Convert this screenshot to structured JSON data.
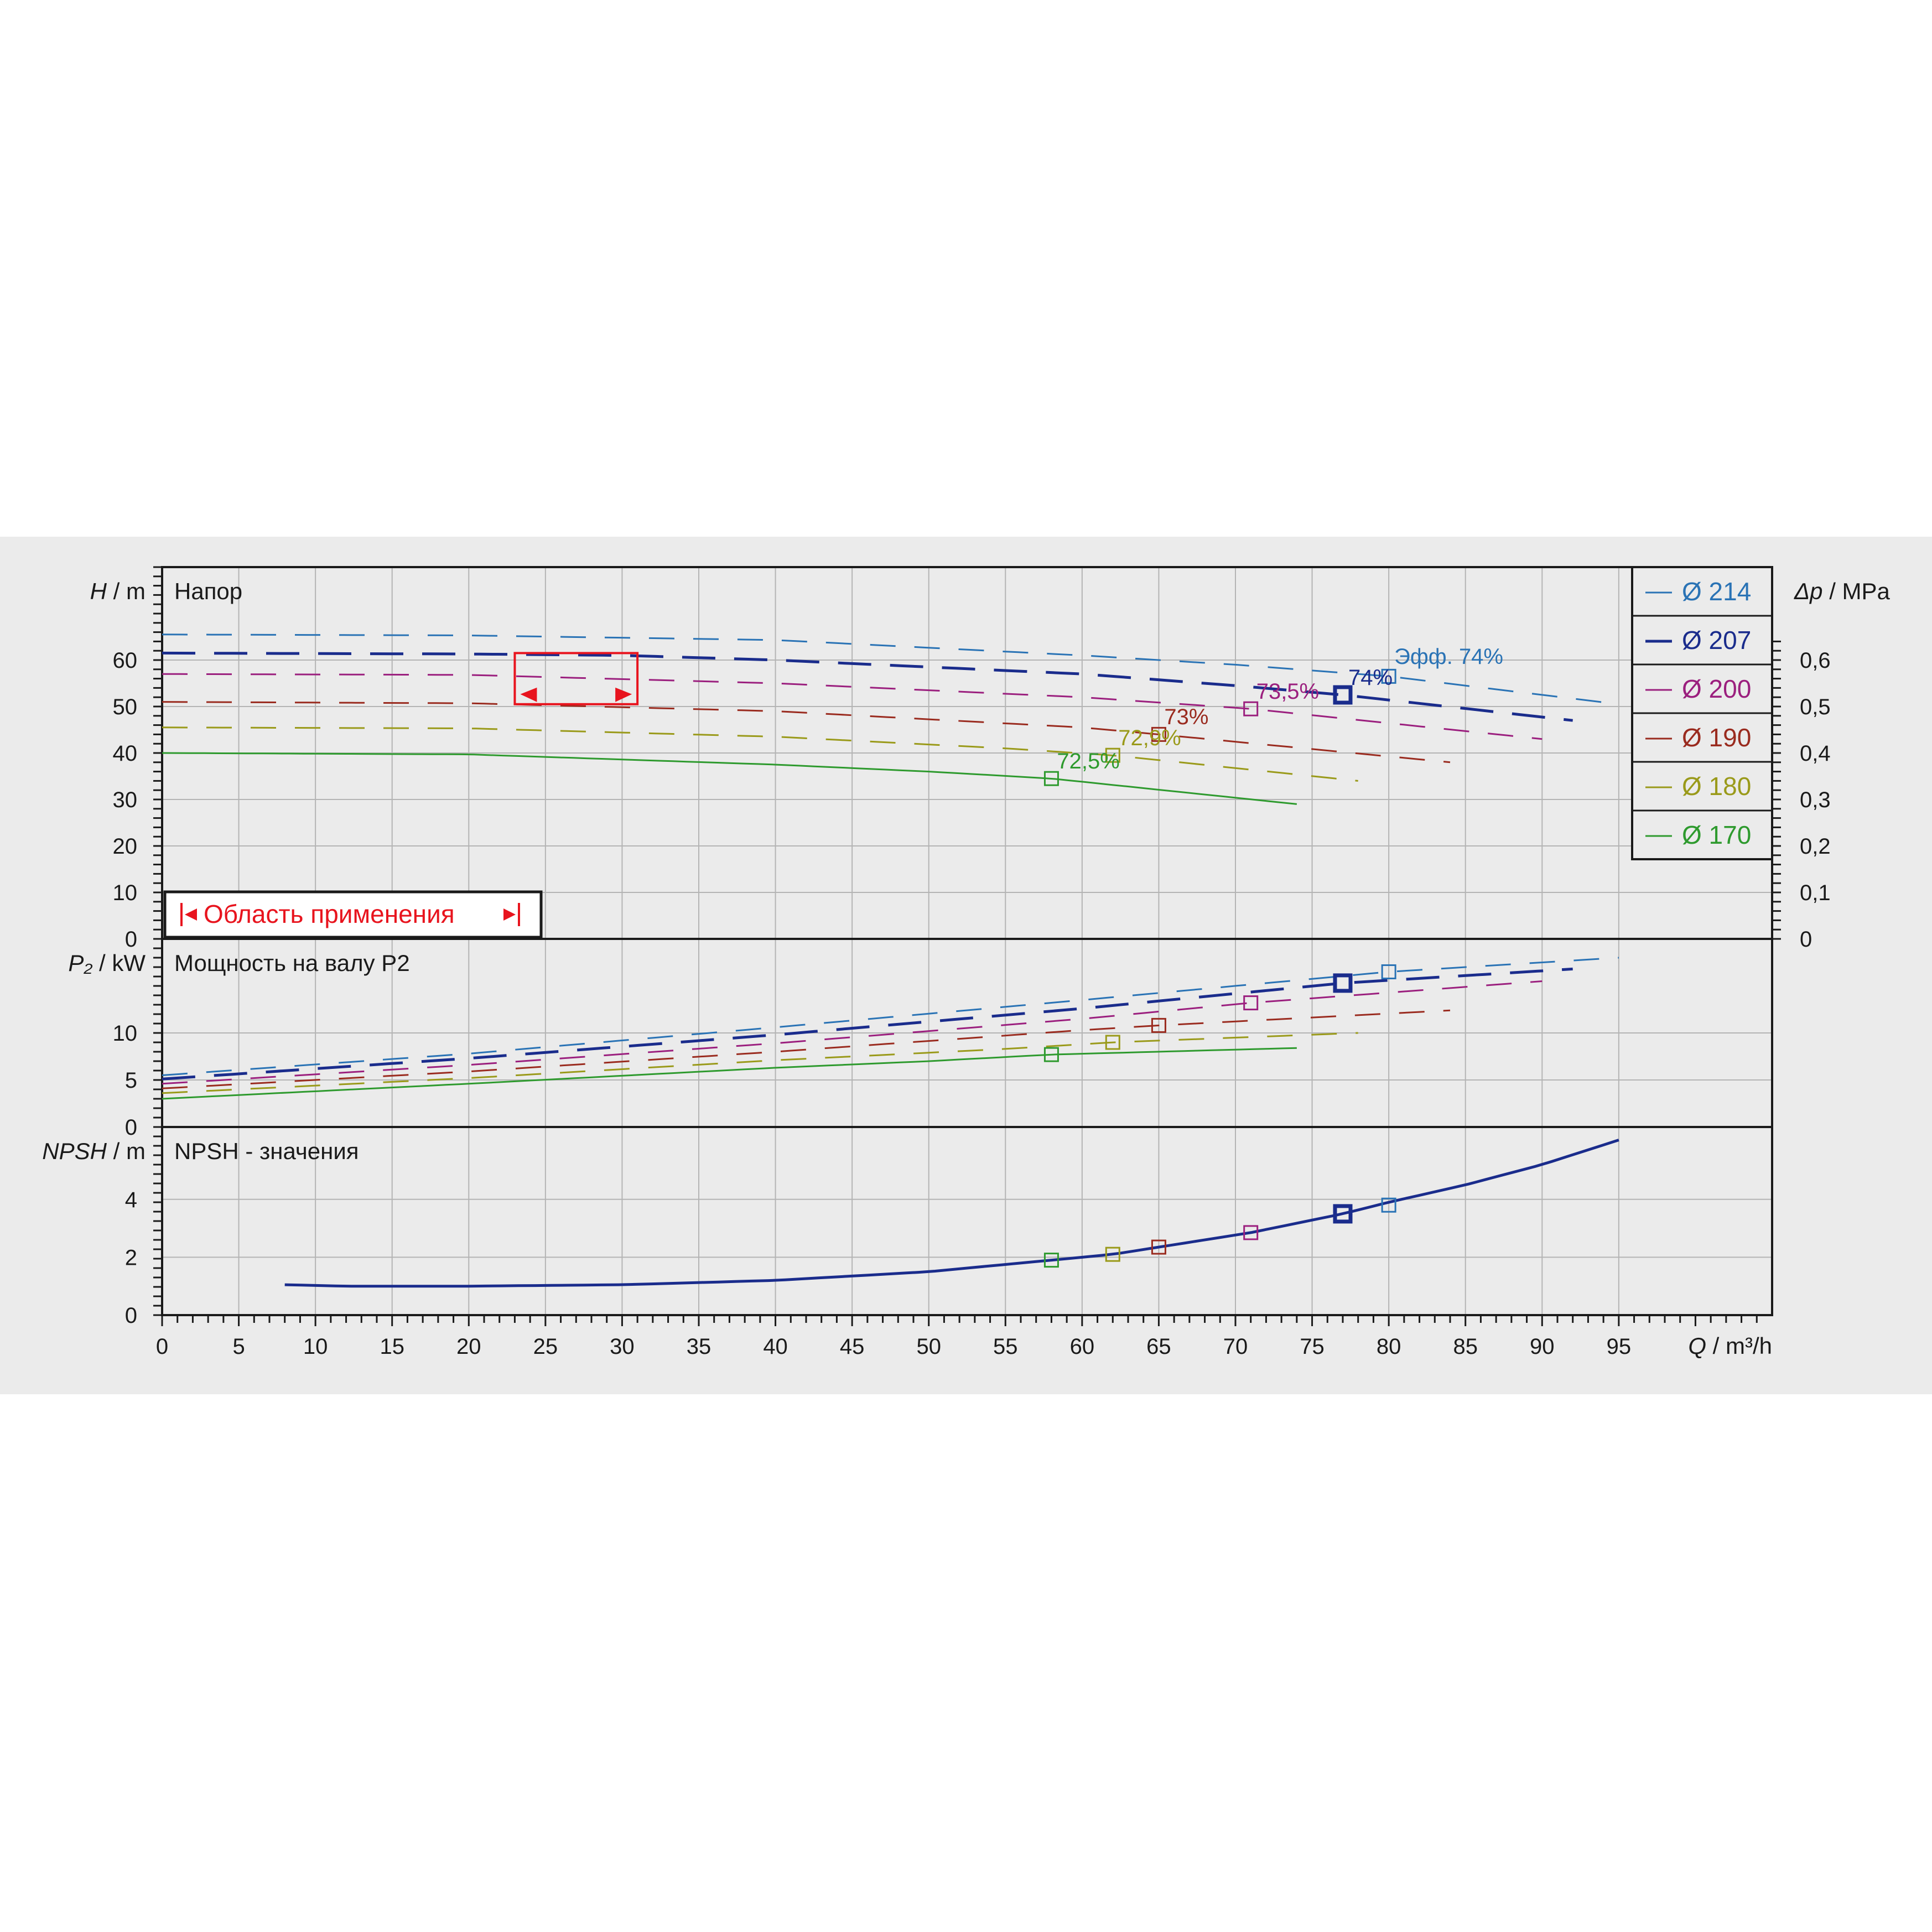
{
  "chart_data": {
    "type": "line",
    "x_axis": {
      "label_var": "Q",
      "label_unit": "/ m³/h",
      "range": [
        0,
        105
      ],
      "ticks": [
        0,
        5,
        10,
        15,
        20,
        25,
        30,
        35,
        40,
        45,
        50,
        55,
        60,
        65,
        70,
        75,
        80,
        85,
        90,
        95
      ]
    },
    "panels": [
      {
        "id": "head",
        "title": "Напор",
        "ylabel_var": "H",
        "ylabel_unit": "/ m",
        "ylim": [
          0,
          80
        ],
        "yticks": [
          0,
          10,
          20,
          30,
          40,
          50,
          60
        ],
        "right_axis": {
          "label_var": "Δp",
          "label_unit": "/ MPa",
          "ticks": [
            "0",
            "0,1",
            "0,2",
            "0,3",
            "0,4",
            "0,5",
            "0,6"
          ]
        },
        "series": [
          {
            "name": "Ø 214",
            "color": "#2a73b5",
            "x": [
              0,
              20,
              40,
              60,
              70,
              80,
              95
            ],
            "y": [
              65.5,
              65.3,
              64.3,
              61,
              59,
              56.5,
              50.5
            ]
          },
          {
            "name": "Ø 207",
            "color": "#1a2c8c",
            "x": [
              0,
              20,
              30,
              40,
              60,
              70,
              77,
              92
            ],
            "y": [
              61.5,
              61.3,
              61,
              60,
              57,
              54.5,
              52.5,
              47
            ]
          },
          {
            "name": "Ø 200",
            "color": "#9b1f7e",
            "x": [
              0,
              20,
              40,
              60,
              71,
              90
            ],
            "y": [
              57,
              56.8,
              55,
              52,
              49.5,
              43
            ]
          },
          {
            "name": "Ø 190",
            "color": "#9a2b1f",
            "x": [
              0,
              20,
              40,
              60,
              65,
              84
            ],
            "y": [
              51,
              50.7,
              49,
              45.5,
              44,
              38
            ]
          },
          {
            "name": "Ø 180",
            "color": "#9a9a1a",
            "x": [
              0,
              20,
              40,
              55,
              62,
              78
            ],
            "y": [
              45.5,
              45.3,
              43.5,
              41,
              39.5,
              34
            ]
          },
          {
            "name": "Ø 170",
            "color": "#2e9a2e",
            "x": [
              0,
              20,
              40,
              50,
              58,
              74
            ],
            "y": [
              40,
              39.7,
              37.5,
              36,
              34.5,
              29
            ]
          }
        ],
        "annotations": [
          {
            "text": "Эфф.  74%",
            "x": 80,
            "y": 57.5,
            "series": "Ø 214"
          },
          {
            "text": "74%",
            "x": 77,
            "y": 53,
            "series": "Ø 207"
          },
          {
            "text": "73,5%",
            "x": 71,
            "y": 50,
            "series": "Ø 200"
          },
          {
            "text": "73%",
            "x": 65,
            "y": 44.5,
            "series": "Ø 190"
          },
          {
            "text": "72,9%",
            "x": 62,
            "y": 40,
            "series": "Ø 180"
          },
          {
            "text": "72,5%",
            "x": 58,
            "y": 35,
            "series": "Ø 170"
          }
        ],
        "operating_range": {
          "label": "Область применения",
          "x": [
            23,
            31
          ],
          "y": [
            50.5,
            61.5
          ]
        }
      },
      {
        "id": "power",
        "title": "Мощность на валу P2",
        "ylabel_var": "P₂",
        "ylabel_unit": "/ kW",
        "ylim": [
          0,
          20
        ],
        "yticks": [
          0,
          5,
          10
        ],
        "series": [
          {
            "name": "Ø 214",
            "x": [
              0,
              20,
              40,
              60,
              80,
              95
            ],
            "y": [
              5.5,
              7.8,
              10.6,
              13.5,
              16.5,
              18
            ]
          },
          {
            "name": "Ø 207",
            "x": [
              0,
              20,
              40,
              60,
              77,
              92
            ],
            "y": [
              5.1,
              7.3,
              9.8,
              12.6,
              15.3,
              16.8
            ]
          },
          {
            "name": "Ø 200",
            "x": [
              0,
              20,
              40,
              60,
              71,
              90
            ],
            "y": [
              4.6,
              6.6,
              8.9,
              11.5,
              13.2,
              15.5
            ]
          },
          {
            "name": "Ø 190",
            "x": [
              0,
              20,
              40,
              60,
              65,
              84
            ],
            "y": [
              4.1,
              5.9,
              8,
              10.3,
              10.8,
              12.4
            ]
          },
          {
            "name": "Ø 180",
            "x": [
              0,
              20,
              40,
              55,
              62,
              78
            ],
            "y": [
              3.6,
              5.2,
              7.1,
              8.3,
              9,
              10
            ]
          },
          {
            "name": "Ø 170",
            "x": [
              0,
              20,
              40,
              50,
              58,
              74
            ],
            "y": [
              3,
              4.6,
              6.3,
              7,
              7.7,
              8.4
            ]
          }
        ],
        "markers": [
          {
            "series": "Ø 214",
            "x": 80,
            "y": 16.5
          },
          {
            "series": "Ø 207",
            "x": 77,
            "y": 15.3
          },
          {
            "series": "Ø 200",
            "x": 71,
            "y": 13.2
          },
          {
            "series": "Ø 190",
            "x": 65,
            "y": 10.8
          },
          {
            "series": "Ø 180",
            "x": 62,
            "y": 9
          },
          {
            "series": "Ø 170",
            "x": 58,
            "y": 7.7
          }
        ]
      },
      {
        "id": "npsh",
        "title": "NPSH - значения",
        "ylabel_var": "NPSH",
        "ylabel_unit": "/ m",
        "ylim": [
          0,
          6.5
        ],
        "yticks": [
          0,
          2,
          4
        ],
        "series": [
          {
            "name": "NPSH",
            "x": [
              8,
              12,
              15,
              20,
              30,
              40,
              50,
              58,
              62,
              65,
              71,
              77,
              80,
              85,
              90,
              95
            ],
            "y": [
              1.05,
              1,
              1,
              1,
              1.05,
              1.2,
              1.5,
              1.9,
              2.1,
              2.35,
              2.85,
              3.5,
              3.9,
              4.5,
              5.2,
              6.05
            ]
          }
        ],
        "markers": [
          {
            "series": "Ø 214",
            "x": 80,
            "y": 3.8
          },
          {
            "series": "Ø 207",
            "x": 77,
            "y": 3.5
          },
          {
            "series": "Ø 200",
            "x": 71,
            "y": 2.85
          },
          {
            "series": "Ø 190",
            "x": 65,
            "y": 2.35
          },
          {
            "series": "Ø 180",
            "x": 62,
            "y": 2.1
          },
          {
            "series": "Ø 170",
            "x": 58,
            "y": 1.9
          }
        ]
      }
    ],
    "legend": {
      "placement": "top-right",
      "entries": [
        "Ø 214",
        "Ø 207",
        "Ø 200",
        "Ø 190",
        "Ø 180",
        "Ø 170"
      ]
    },
    "grid": true
  }
}
